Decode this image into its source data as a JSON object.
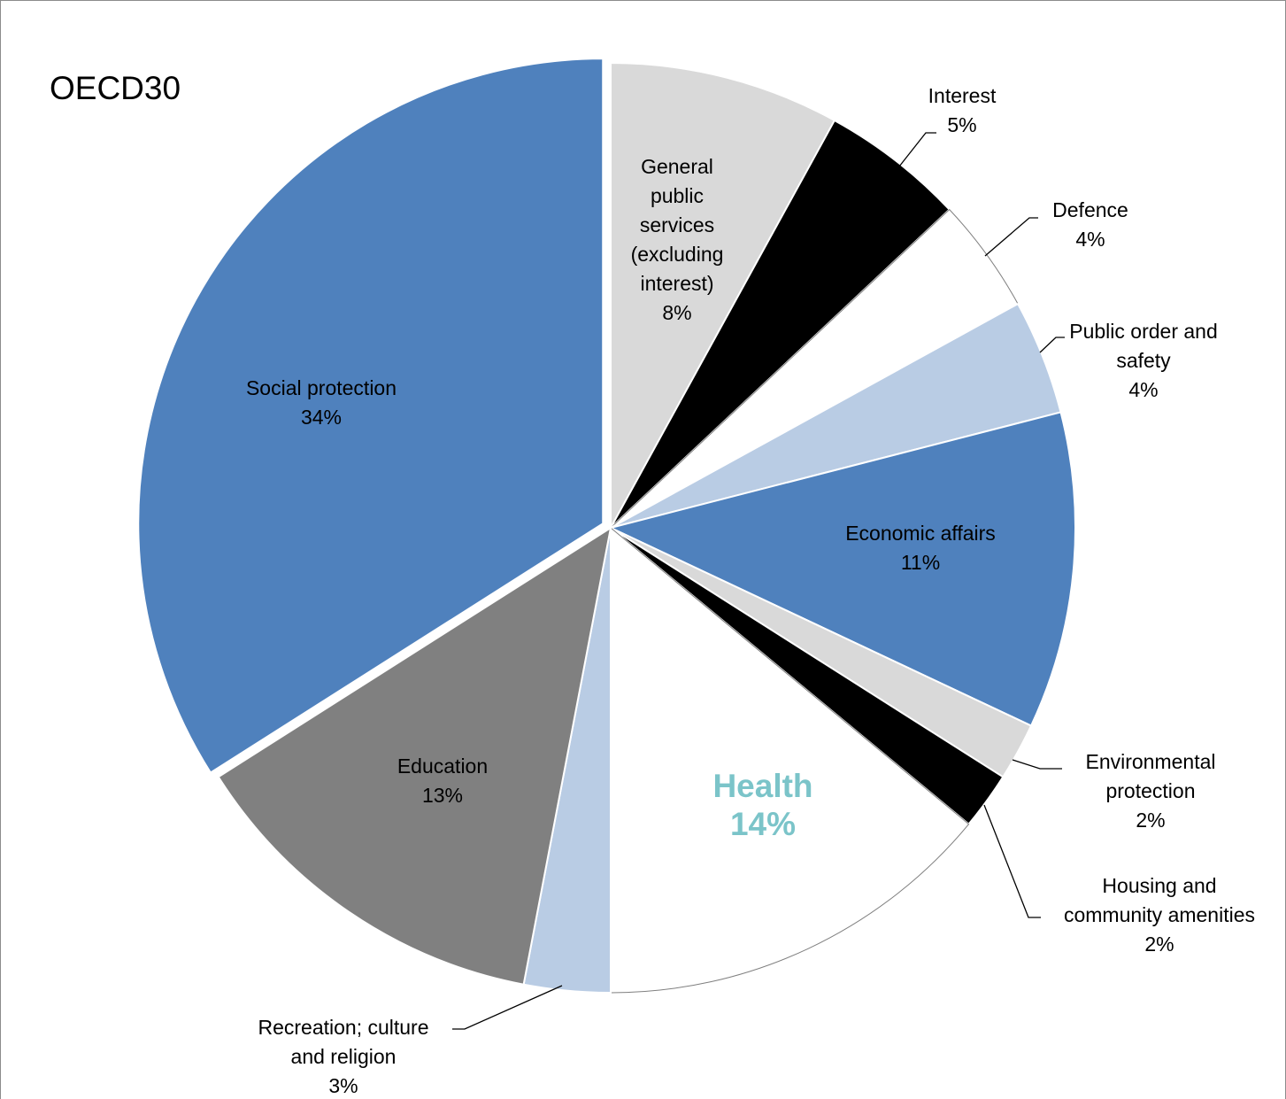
{
  "chart_data": {
    "type": "pie",
    "title": "OECD30",
    "start_angle_deg": 0,
    "direction": "clockwise",
    "highlight_color": "#7bc4c9",
    "slices": [
      {
        "label": "General public services (excluding interest)",
        "label_lines": [
          "General",
          "public",
          "services",
          "(excluding",
          "interest)"
        ],
        "value": 8,
        "value_label": "8%",
        "color": "#d9d9d9"
      },
      {
        "label": "Interest",
        "label_lines": [
          "Interest"
        ],
        "value": 5,
        "value_label": "5%",
        "color": "#000000"
      },
      {
        "label": "Defence",
        "label_lines": [
          "Defence"
        ],
        "value": 4,
        "value_label": "4%",
        "color": "#ffffff"
      },
      {
        "label": "Public order and safety",
        "label_lines": [
          "Public order and",
          "safety"
        ],
        "value": 4,
        "value_label": "4%",
        "color": "#b9cce4"
      },
      {
        "label": "Economic affairs",
        "label_lines": [
          "Economic affairs"
        ],
        "value": 11,
        "value_label": "11%",
        "color": "#4f81bd"
      },
      {
        "label": "Environmental protection",
        "label_lines": [
          "Environmental",
          "protection"
        ],
        "value": 2,
        "value_label": "2%",
        "color": "#d9d9d9"
      },
      {
        "label": "Housing and community amenities",
        "label_lines": [
          "Housing and",
          "community amenities"
        ],
        "value": 2,
        "value_label": "2%",
        "color": "#000000"
      },
      {
        "label": "Health",
        "label_lines": [
          "Health"
        ],
        "value": 14,
        "value_label": "14%",
        "color": "#ffffff",
        "highlight": true
      },
      {
        "label": "Recreation; culture and religion",
        "label_lines": [
          "Recreation; culture",
          "and religion"
        ],
        "value": 3,
        "value_label": "3%",
        "color": "#b9cce4"
      },
      {
        "label": "Education",
        "label_lines": [
          "Education"
        ],
        "value": 13,
        "value_label": "13%",
        "color": "#808080"
      },
      {
        "label": "Social protection",
        "label_lines": [
          "Social protection"
        ],
        "value": 34,
        "value_label": "34%",
        "color": "#4f81bd",
        "exploded": true
      }
    ]
  }
}
